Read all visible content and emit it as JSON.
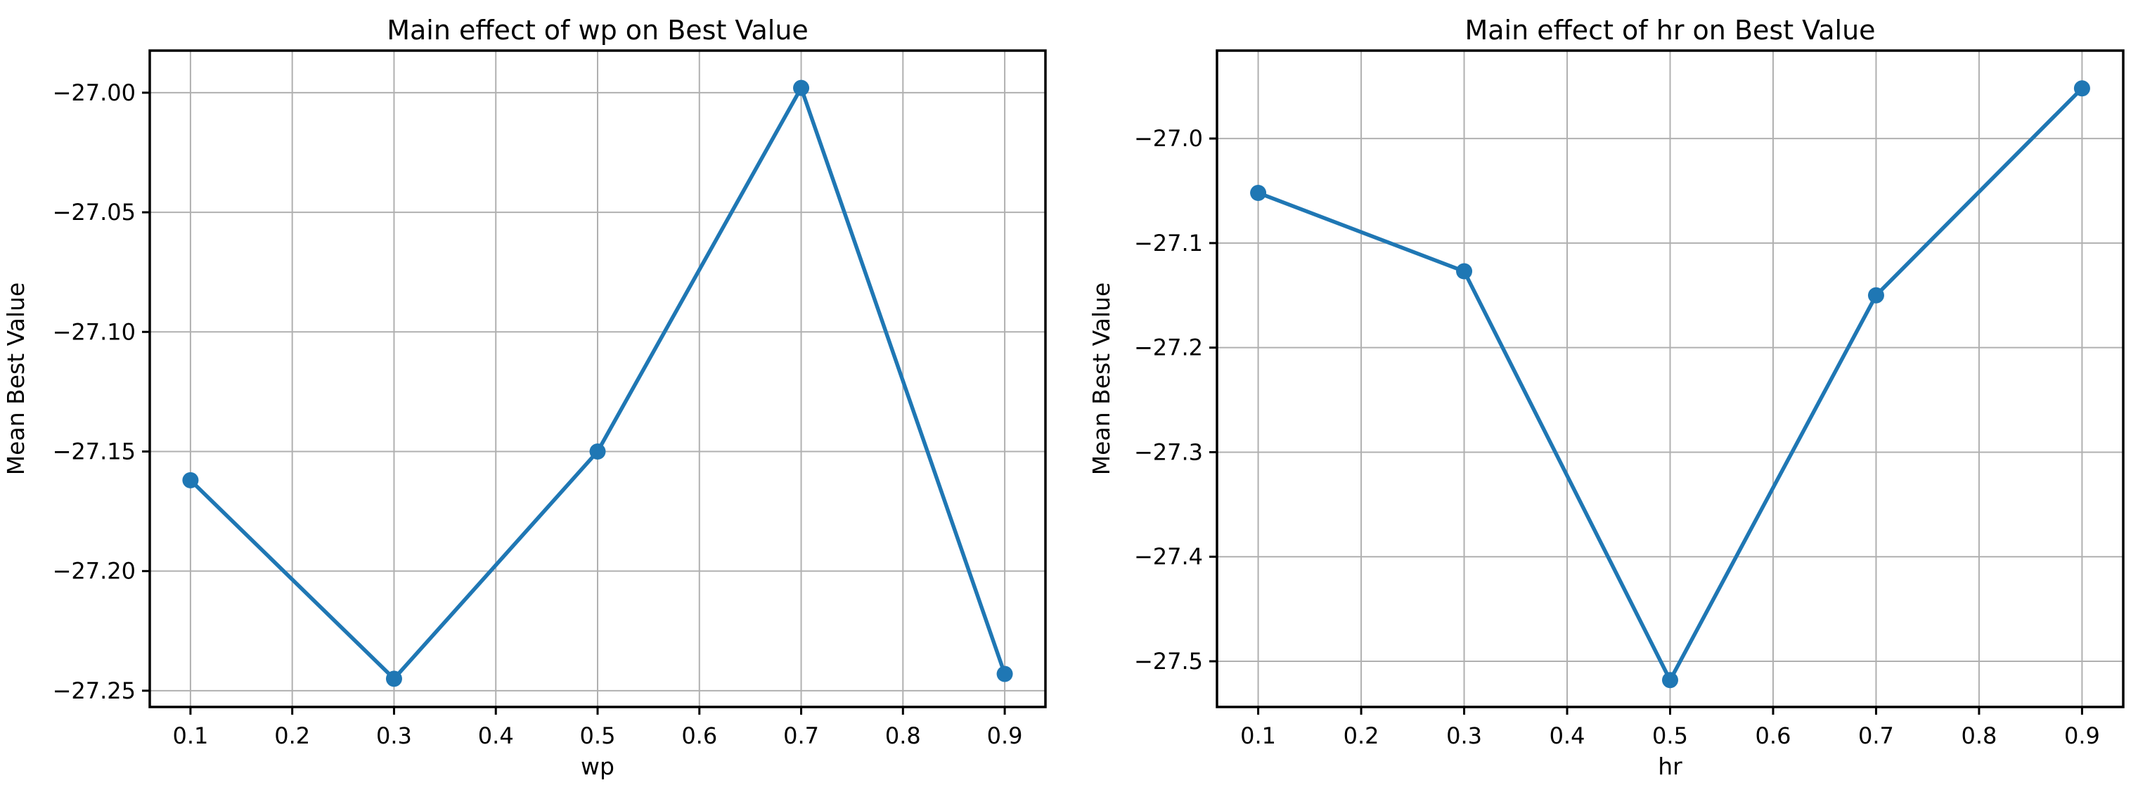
{
  "figure": {
    "background": "#ffffff"
  },
  "colors": {
    "line": "#1f77b4",
    "marker": "#1f77b4",
    "grid": "#b0b0b0",
    "axis": "#000000",
    "background": "#ffffff"
  },
  "chart_data": [
    {
      "type": "line",
      "title": "Main effect of wp on Best Value",
      "xlabel": "wp",
      "ylabel": "Mean Best Value",
      "x": [
        0.1,
        0.3,
        0.5,
        0.7,
        0.9
      ],
      "y": [
        -27.162,
        -27.245,
        -27.15,
        -26.998,
        -27.243
      ],
      "xticks": [
        0.1,
        0.2,
        0.3,
        0.4,
        0.5,
        0.6,
        0.7,
        0.8,
        0.9
      ],
      "xtick_labels": [
        "0.1",
        "0.2",
        "0.3",
        "0.4",
        "0.5",
        "0.6",
        "0.7",
        "0.8",
        "0.9"
      ],
      "yticks": [
        -27.0,
        -27.05,
        -27.1,
        -27.15,
        -27.2,
        -27.25
      ],
      "ytick_labels": [
        "−27.00",
        "−27.05",
        "−27.10",
        "−27.15",
        "−27.20",
        "−27.25"
      ],
      "xlim": [
        0.06,
        0.94
      ],
      "ylim": [
        -27.2568,
        -26.9824
      ],
      "grid": true,
      "legend": null,
      "line_color": "#1f77b4",
      "marker": "circle"
    },
    {
      "type": "line",
      "title": "Main effect of hr on Best Value",
      "xlabel": "hr",
      "ylabel": "Mean Best Value",
      "x": [
        0.1,
        0.3,
        0.5,
        0.7,
        0.9
      ],
      "y": [
        -27.052,
        -27.127,
        -27.518,
        -27.15,
        -26.952
      ],
      "xticks": [
        0.1,
        0.2,
        0.3,
        0.4,
        0.5,
        0.6,
        0.7,
        0.8,
        0.9
      ],
      "xtick_labels": [
        "0.1",
        "0.2",
        "0.3",
        "0.4",
        "0.5",
        "0.6",
        "0.7",
        "0.8",
        "0.9"
      ],
      "yticks": [
        -27.0,
        -27.1,
        -27.2,
        -27.3,
        -27.4,
        -27.5
      ],
      "ytick_labels": [
        "−27.0",
        "−27.1",
        "−27.2",
        "−27.3",
        "−27.4",
        "−27.5"
      ],
      "xlim": [
        0.06,
        0.94
      ],
      "ylim": [
        -27.5437,
        -26.9159
      ],
      "grid": true,
      "legend": null,
      "line_color": "#1f77b4",
      "marker": "circle"
    }
  ]
}
